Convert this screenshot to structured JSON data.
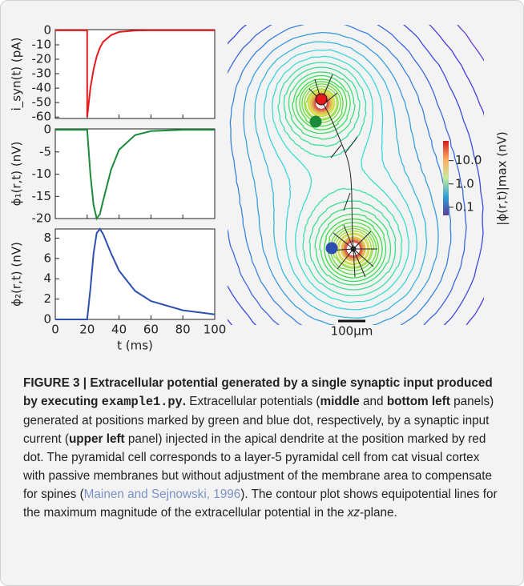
{
  "chart_data": [
    {
      "type": "line",
      "ylabel": "i_syn(t) (pA)",
      "color": "#e41a1c",
      "x": [
        0,
        5,
        10,
        15,
        20,
        20,
        22,
        24,
        26,
        28,
        30,
        35,
        40,
        50,
        60,
        80,
        100
      ],
      "values": [
        0,
        0,
        0,
        0,
        0,
        -60,
        -40,
        -27,
        -18,
        -12,
        -8,
        -3.3,
        -1.1,
        -0.1,
        0,
        0,
        0
      ],
      "xlim": [
        0,
        100
      ],
      "ylim": [
        -61,
        0.5
      ],
      "yticks": [
        0,
        -10,
        -20,
        -30,
        -40,
        -50,
        -60
      ]
    },
    {
      "type": "line",
      "ylabel": "ϕ₁(r,t) (nV)",
      "color": "#1b8a3a",
      "x": [
        0,
        5,
        10,
        15,
        20,
        20,
        22,
        24,
        26,
        28,
        30,
        35,
        40,
        50,
        60,
        80,
        100
      ],
      "values": [
        0,
        0,
        0,
        0,
        0,
        0,
        -10,
        -17,
        -20,
        -19,
        -16,
        -9,
        -4.5,
        -1.2,
        -0.3,
        0,
        0
      ],
      "xlim": [
        0,
        100
      ],
      "ylim": [
        -20,
        0.2
      ],
      "yticks": [
        0,
        -5,
        -10,
        -15,
        -20
      ]
    },
    {
      "type": "line",
      "ylabel": "ϕ₂(r,t) (nV)",
      "xlabel": "t (ms)",
      "color": "#2c4fb0",
      "x": [
        0,
        5,
        10,
        15,
        20,
        20,
        22,
        24,
        26,
        28,
        30,
        35,
        40,
        50,
        60,
        80,
        100
      ],
      "values": [
        0,
        0,
        0,
        0,
        0,
        0,
        3,
        6.5,
        8.5,
        8.9,
        8.4,
        6.5,
        4.8,
        2.8,
        1.8,
        0.9,
        0.5
      ],
      "xlim": [
        0,
        100
      ],
      "ylim": [
        0,
        8.9
      ],
      "yticks": [
        0,
        2,
        4,
        6,
        8
      ],
      "xticks": [
        0,
        20,
        40,
        60,
        80,
        100
      ]
    },
    {
      "type": "contour",
      "scale_label": "100μm",
      "colorbar": {
        "label": "|ϕ(r,t)|max (nV)",
        "log": true,
        "lim": [
          0.045,
          70
        ],
        "ticks": [
          {
            "value": 10,
            "label": "10.0"
          },
          {
            "value": 1,
            "label": "1.0"
          },
          {
            "value": 0.1,
            "label": "0.1"
          }
        ]
      }
    }
  ],
  "caption": {
    "runs": [
      {
        "text": "FIGURE 3 | Extracellular potential generated by a single synaptic input produced by executing ",
        "style": "bold"
      },
      {
        "text": "example1.py",
        "style": "code"
      },
      {
        "text": ".",
        "style": "bold"
      },
      {
        "text": " Extracellular potentials (",
        "style": "normal"
      },
      {
        "text": "middle",
        "style": "bold"
      },
      {
        "text": " and ",
        "style": "normal"
      },
      {
        "text": "bottom left",
        "style": "bold"
      },
      {
        "text": " panels) generated at positions marked by green and blue dot, respectively, by a synaptic input current (",
        "style": "normal"
      },
      {
        "text": "upper left",
        "style": "bold"
      },
      {
        "text": " panel) injected in the apical dendrite at the position marked by red dot. The pyramidal cell corresponds to a layer-5 pyramidal cell from cat visual cortex with passive membranes but without adjustment of the membrane area to compensate for spines (",
        "style": "normal"
      },
      {
        "text": "Mainen and Sejnowski, 1996",
        "style": "link"
      },
      {
        "text": "). The contour plot shows equipotential lines for the maximum magnitude of the extracellular potential in the ",
        "style": "normal"
      },
      {
        "text": "xz",
        "style": "italic"
      },
      {
        "text": "-plane.",
        "style": "normal"
      }
    ]
  }
}
